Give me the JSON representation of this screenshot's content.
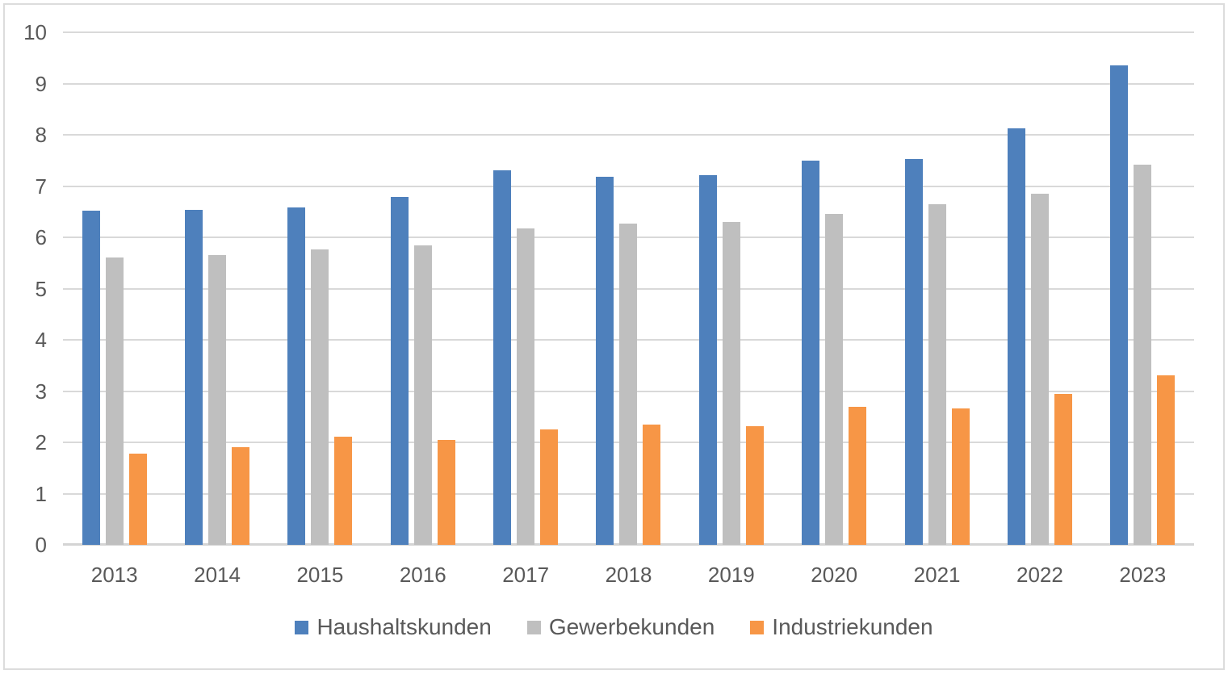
{
  "chart_data": {
    "type": "bar",
    "title": "",
    "xlabel": "",
    "ylabel": "",
    "categories": [
      "2013",
      "2014",
      "2015",
      "2016",
      "2017",
      "2018",
      "2019",
      "2020",
      "2021",
      "2022",
      "2023"
    ],
    "series": [
      {
        "name": "Haushaltskunden",
        "color": "#4e80bc",
        "values": [
          6.52,
          6.54,
          6.59,
          6.79,
          7.3,
          7.18,
          7.21,
          7.5,
          7.52,
          8.12,
          9.35
        ]
      },
      {
        "name": "Gewerbekunden",
        "color": "#bfbfbf",
        "values": [
          5.61,
          5.65,
          5.77,
          5.85,
          6.18,
          6.27,
          6.3,
          6.46,
          6.64,
          6.85,
          7.42
        ]
      },
      {
        "name": "Industriekunden",
        "color": "#f79646",
        "values": [
          1.78,
          1.9,
          2.11,
          2.05,
          2.25,
          2.35,
          2.32,
          2.7,
          2.66,
          2.95,
          3.3
        ]
      }
    ],
    "ylim": [
      0,
      10
    ],
    "yticks": [
      "0",
      "1",
      "2",
      "3",
      "4",
      "5",
      "6",
      "7",
      "8",
      "9",
      "10"
    ],
    "grid": true,
    "legend_position": "bottom"
  },
  "style": {
    "grid_color": "#d9d9d9",
    "axis_color": "#d4d4d4",
    "text_color": "#595959",
    "border_color": "#dcdcdc",
    "background": "#ffffff"
  }
}
